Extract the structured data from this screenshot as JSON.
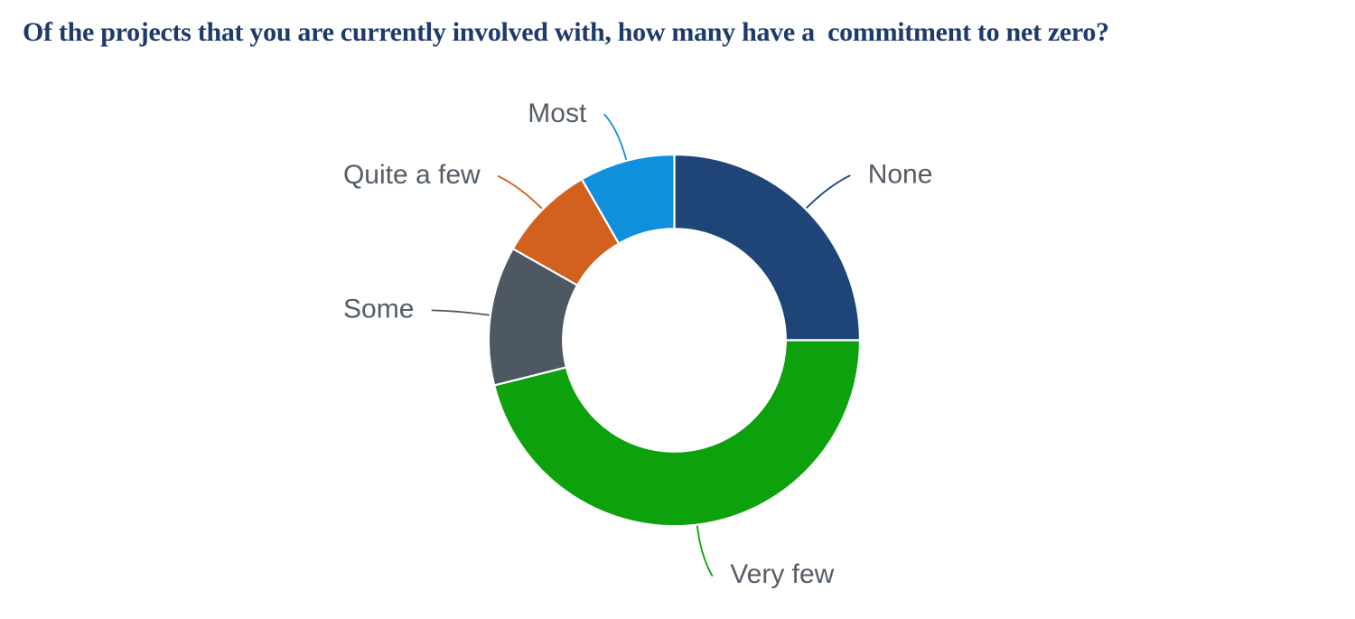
{
  "header": {
    "title": "Of the projects that you are currently involved with, how many have a  commitment to net zero?"
  },
  "chart_data": {
    "type": "pie",
    "subtype": "donut",
    "title": "Of the projects that you are currently involved with, how many have a  commitment to net zero?",
    "slices": [
      {
        "label": "None",
        "value": 25.0,
        "color": "#1f4477"
      },
      {
        "label": "Very few",
        "value": 46.1,
        "color": "#0da20d"
      },
      {
        "label": "Some",
        "value": 12.1,
        "color": "#4d5862"
      },
      {
        "label": "Quite a few",
        "value": 8.5,
        "color": "#d2601f"
      },
      {
        "label": "Most",
        "value": 8.3,
        "color": "#0e90dc"
      }
    ],
    "start_angle_deg": 0,
    "direction": "clockwise",
    "inner_radius_ratio": 0.6,
    "labels": "outside-with-connectors",
    "legend": "none",
    "data_labels_show_values": false
  },
  "styles": {
    "title_color": "#1e3a6c",
    "label_color": "#545d66",
    "background": "#ffffff",
    "slice_border_color": "#ffffff"
  }
}
